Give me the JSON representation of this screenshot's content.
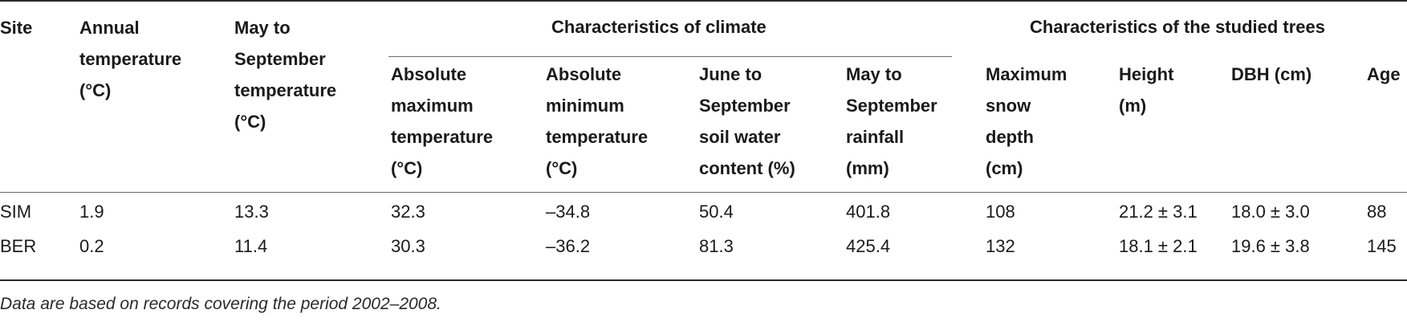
{
  "table": {
    "columns": {
      "site": "Site",
      "annual_temp": [
        "Annual",
        "temperature",
        "(°C)"
      ],
      "may_sep_temp": [
        "May to",
        "September",
        "temperature",
        "(°C)"
      ],
      "abs_max_temp": [
        "Absolute",
        "maximum",
        "temperature",
        "(°C)"
      ],
      "abs_min_temp": [
        "Absolute",
        "minimum",
        "temperature",
        "(°C)"
      ],
      "soil_water": [
        "June to",
        "September",
        "soil water",
        "content (%)"
      ],
      "rainfall": [
        "May to",
        "September",
        "rainfall",
        "(mm)"
      ],
      "snow_depth": [
        "Maximum",
        "snow",
        "depth",
        "(cm)"
      ],
      "height": [
        "Height",
        "(m)"
      ],
      "dbh": "DBH (cm)",
      "age": "Age"
    },
    "groups": {
      "climate": "Characteristics of climate",
      "trees": "Characteristics of the studied trees"
    },
    "rows": [
      {
        "site": "SIM",
        "annual_temp": "1.9",
        "may_sep_temp": "13.3",
        "abs_max_temp": "32.3",
        "abs_min_temp": "–34.8",
        "soil_water": "50.4",
        "rainfall": "401.8",
        "snow_depth": "108",
        "height": "21.2 ± 3.1",
        "dbh": "18.0 ± 3.0",
        "age": "88"
      },
      {
        "site": "BER",
        "annual_temp": "0.2",
        "may_sep_temp": "11.4",
        "abs_max_temp": "30.3",
        "abs_min_temp": "–36.2",
        "soil_water": "81.3",
        "rainfall": "425.4",
        "snow_depth": "132",
        "height": "18.1 ± 2.1",
        "dbh": "19.6 ± 3.8",
        "age": "145"
      }
    ],
    "footnote": "Data are based on records covering the period 2002–2008."
  }
}
